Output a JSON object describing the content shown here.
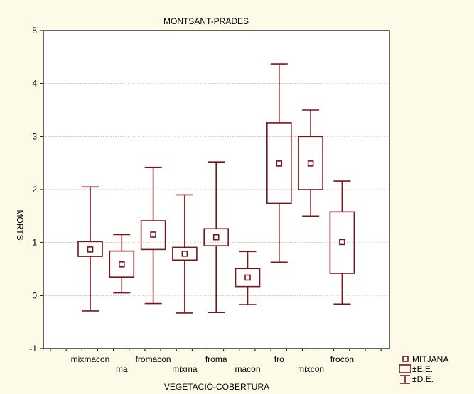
{
  "chart_data": {
    "type": "box",
    "title": "MONTSANT-PRADES",
    "xlabel": "VEGETACIÓ-COBERTURA",
    "ylabel": "MORTS",
    "ylim": [
      -1,
      5
    ],
    "yticks": [
      -1,
      0,
      1,
      2,
      3,
      4,
      5
    ],
    "grid": true,
    "legend_position": "bottom-right",
    "colors": {
      "box": "#7a1418",
      "background": "#fdfae8",
      "plot_area": "#ffffff",
      "grid": "#bdbdbd"
    },
    "categories": [
      "mixmacon",
      "ma",
      "fromacon",
      "mixma",
      "froma",
      "macon",
      "fro",
      "mixcon",
      "frocon"
    ],
    "series": [
      {
        "mean": [
          0.87,
          0.59,
          1.15,
          0.79,
          1.1,
          0.34,
          2.49,
          2.49,
          1.01
        ],
        "se_low": [
          0.74,
          0.35,
          0.87,
          0.67,
          0.94,
          0.17,
          1.74,
          2.0,
          0.42
        ],
        "se_high": [
          1.02,
          0.84,
          1.41,
          0.91,
          1.26,
          0.51,
          3.26,
          3.0,
          1.58
        ],
        "sd_low": [
          -0.29,
          0.05,
          -0.15,
          -0.33,
          -0.32,
          -0.17,
          0.63,
          1.5,
          -0.16
        ],
        "sd_high": [
          2.05,
          1.15,
          2.42,
          1.9,
          2.52,
          0.83,
          4.37,
          3.5,
          2.16
        ]
      }
    ],
    "legend": [
      {
        "icon": "small-square",
        "label": "MITJANA"
      },
      {
        "icon": "box",
        "label": "±E.E."
      },
      {
        "icon": "whisker",
        "label": "±D.E."
      }
    ]
  }
}
